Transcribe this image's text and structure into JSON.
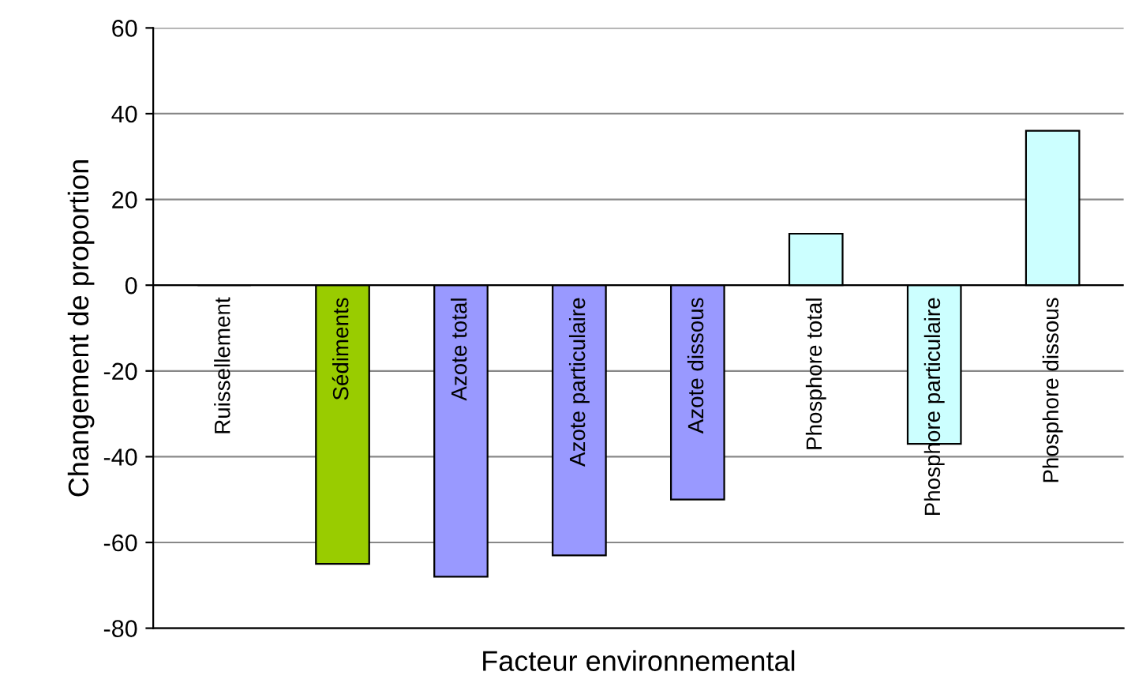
{
  "chart_data": {
    "type": "bar",
    "xlabel": "Facteur environnemental",
    "ylabel": "Changement de proportion",
    "categories": [
      "Ruissellement",
      "Sédiments",
      "Azote total",
      "Azote particulaire",
      "Azote dissous",
      "Phosphore total",
      "Phosphore particulaire",
      "Phosphore dissous"
    ],
    "values": [
      0,
      -65,
      -68,
      -63,
      -50,
      12,
      -37,
      36
    ],
    "colors": [
      "#9999ff",
      "#99cc00",
      "#9999ff",
      "#9999ff",
      "#9999ff",
      "#ccffff",
      "#ccffff",
      "#ccffff"
    ],
    "ylim": [
      -80,
      60
    ],
    "yticks": [
      -80,
      -60,
      -40,
      -20,
      0,
      20,
      40,
      60
    ],
    "grid": "y"
  }
}
